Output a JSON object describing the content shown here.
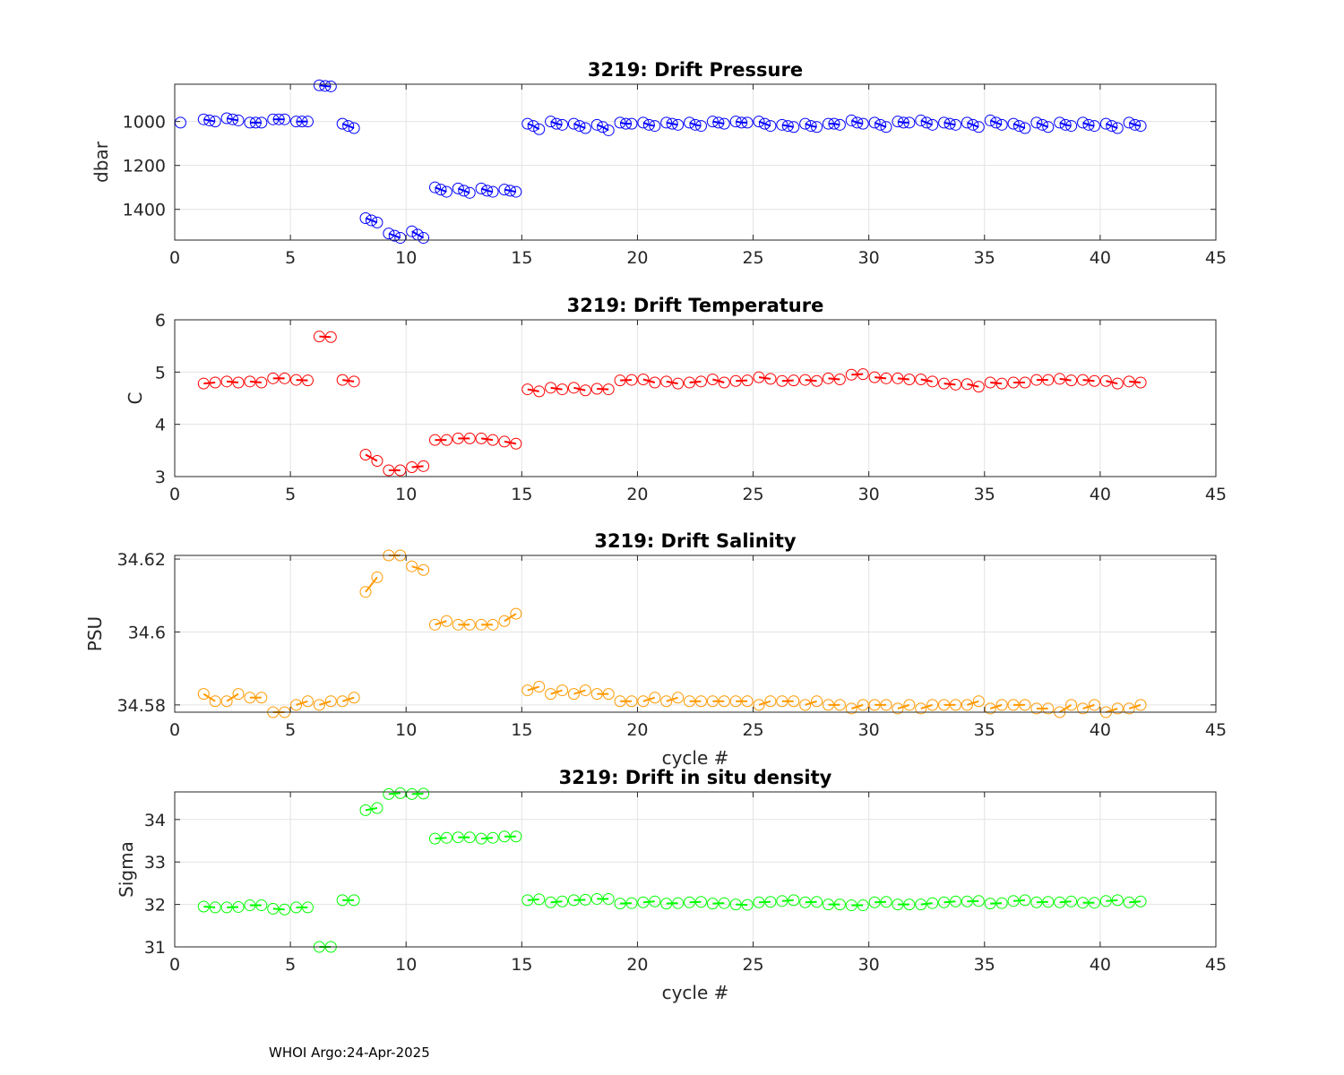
{
  "footer": "WHOI Argo:24-Apr-2025",
  "chart_data": [
    {
      "type": "scatter",
      "title": "3219: Drift Pressure",
      "xlabel": "",
      "ylabel": "dbar",
      "xlim": [
        0,
        45
      ],
      "ylim": [
        830,
        1540
      ],
      "y_reversed": true,
      "xticks": [
        0,
        5,
        10,
        15,
        20,
        25,
        30,
        35,
        40,
        45
      ],
      "yticks": [
        1000,
        1200,
        1400
      ],
      "grid": true,
      "color": "#0000ff",
      "marker": "open circle with connecting line per cycle",
      "series": [
        {
          "x": [
            0.25,
            1.25,
            1.5,
            1.75,
            2.25,
            2.5,
            2.75,
            3.25,
            3.5,
            3.75,
            4.25,
            4.5,
            4.75,
            5.25,
            5.5,
            5.75,
            6.25,
            6.5,
            6.75,
            7.25,
            7.5,
            7.75,
            8.25,
            8.5,
            8.75,
            9.25,
            9.5,
            9.75,
            10.25,
            10.5,
            10.75,
            11.25,
            11.5,
            11.75,
            12.25,
            12.5,
            12.75,
            13.25,
            13.5,
            13.75,
            14.25,
            14.5,
            14.75,
            15.25,
            15.5,
            15.75,
            16.25,
            16.5,
            16.75,
            17.25,
            17.5,
            17.75,
            18.25,
            18.5,
            18.75,
            19.25,
            19.5,
            19.75,
            20.25,
            20.5,
            20.75,
            21.25,
            21.5,
            21.75,
            22.25,
            22.5,
            22.75,
            23.25,
            23.5,
            23.75,
            24.25,
            24.5,
            24.75,
            25.25,
            25.5,
            25.75,
            26.25,
            26.5,
            26.75,
            27.25,
            27.5,
            27.75,
            28.25,
            28.5,
            28.75,
            29.25,
            29.5,
            29.75,
            30.25,
            30.5,
            30.75,
            31.25,
            31.5,
            31.75,
            32.25,
            32.5,
            32.75,
            33.25,
            33.5,
            33.75,
            34.25,
            34.5,
            34.75,
            35.25,
            35.5,
            35.75,
            36.25,
            36.5,
            36.75,
            37.25,
            37.5,
            37.75,
            38.25,
            38.5,
            38.75,
            39.25,
            39.5,
            39.75,
            40.25,
            40.5,
            40.75,
            41.25,
            41.5,
            41.75
          ],
          "y": [
            1005,
            990,
            995,
            1000,
            985,
            990,
            995,
            1005,
            1005,
            1005,
            990,
            990,
            990,
            1000,
            1000,
            1000,
            835,
            838,
            840,
            1010,
            1020,
            1030,
            1440,
            1450,
            1460,
            1510,
            1520,
            1530,
            1500,
            1515,
            1530,
            1300,
            1310,
            1320,
            1305,
            1315,
            1325,
            1305,
            1315,
            1320,
            1310,
            1315,
            1320,
            1010,
            1020,
            1035,
            1000,
            1010,
            1015,
            1010,
            1020,
            1030,
            1015,
            1025,
            1040,
            1005,
            1010,
            1010,
            1005,
            1015,
            1020,
            1005,
            1010,
            1015,
            1005,
            1015,
            1020,
            1000,
            1005,
            1010,
            1000,
            1005,
            1005,
            1000,
            1010,
            1020,
            1015,
            1020,
            1025,
            1010,
            1020,
            1025,
            1010,
            1010,
            1015,
            995,
            1005,
            1010,
            1005,
            1015,
            1025,
            1000,
            1005,
            1005,
            995,
            1005,
            1015,
            1005,
            1010,
            1015,
            1005,
            1015,
            1025,
            995,
            1005,
            1015,
            1010,
            1020,
            1030,
            1005,
            1015,
            1025,
            1005,
            1015,
            1020,
            1005,
            1015,
            1020,
            1010,
            1020,
            1030,
            1005,
            1015,
            1020
          ]
        }
      ]
    },
    {
      "type": "scatter",
      "title": "3219: Drift Temperature",
      "xlabel": "",
      "ylabel": "C",
      "xlim": [
        0,
        45
      ],
      "ylim": [
        3,
        6
      ],
      "xticks": [
        0,
        5,
        10,
        15,
        20,
        25,
        30,
        35,
        40,
        45
      ],
      "yticks": [
        3,
        4,
        5,
        6
      ],
      "grid": true,
      "color": "#ff0000",
      "marker": "open circle with connecting line per cycle",
      "series": [
        {
          "x": [
            1.25,
            1.75,
            2.25,
            2.75,
            3.25,
            3.75,
            4.25,
            4.75,
            5.25,
            5.75,
            6.25,
            6.75,
            7.25,
            7.75,
            8.25,
            8.75,
            9.25,
            9.75,
            10.25,
            10.75,
            11.25,
            11.75,
            12.25,
            12.75,
            13.25,
            13.75,
            14.25,
            14.75,
            15.25,
            15.75,
            16.25,
            16.75,
            17.25,
            17.75,
            18.25,
            18.75,
            19.25,
            19.75,
            20.25,
            20.75,
            21.25,
            21.75,
            22.25,
            22.75,
            23.25,
            23.75,
            24.25,
            24.75,
            25.25,
            25.75,
            26.25,
            26.75,
            27.25,
            27.75,
            28.25,
            28.75,
            29.25,
            29.75,
            30.25,
            30.75,
            31.25,
            31.75,
            32.25,
            32.75,
            33.25,
            33.75,
            34.25,
            34.75,
            35.25,
            35.75,
            36.25,
            36.75,
            37.25,
            37.75,
            38.25,
            38.75,
            39.25,
            39.75,
            40.25,
            40.75,
            41.25,
            41.75
          ],
          "y": [
            4.78,
            4.8,
            4.82,
            4.8,
            4.82,
            4.8,
            4.88,
            4.88,
            4.85,
            4.84,
            5.68,
            5.67,
            4.85,
            4.82,
            3.42,
            3.3,
            3.12,
            3.12,
            3.18,
            3.2,
            3.7,
            3.7,
            3.73,
            3.73,
            3.73,
            3.7,
            3.67,
            3.63,
            4.67,
            4.63,
            4.7,
            4.67,
            4.7,
            4.65,
            4.68,
            4.67,
            4.84,
            4.85,
            4.86,
            4.8,
            4.82,
            4.78,
            4.8,
            4.82,
            4.86,
            4.8,
            4.83,
            4.84,
            4.9,
            4.87,
            4.83,
            4.84,
            4.85,
            4.83,
            4.88,
            4.86,
            4.95,
            4.96,
            4.9,
            4.88,
            4.88,
            4.86,
            4.86,
            4.82,
            4.78,
            4.76,
            4.77,
            4.72,
            4.8,
            4.78,
            4.8,
            4.8,
            4.85,
            4.85,
            4.87,
            4.84,
            4.85,
            4.83,
            4.83,
            4.78,
            4.82,
            4.8
          ]
        }
      ]
    },
    {
      "type": "scatter",
      "title": "3219: Drift Salinity",
      "xlabel": "cycle #",
      "ylabel": "PSU",
      "xlim": [
        0,
        45
      ],
      "ylim": [
        34.578,
        34.621
      ],
      "xticks": [
        0,
        5,
        10,
        15,
        20,
        25,
        30,
        35,
        40,
        45
      ],
      "yticks": [
        34.58,
        34.6,
        34.62
      ],
      "grid": true,
      "color": "#ff9900",
      "marker": "open circle with connecting line per cycle",
      "series": [
        {
          "x": [
            1.25,
            1.75,
            2.25,
            2.75,
            3.25,
            3.75,
            4.25,
            4.75,
            5.25,
            5.75,
            6.25,
            6.75,
            7.25,
            7.75,
            8.25,
            8.75,
            9.25,
            9.75,
            10.25,
            10.75,
            11.25,
            11.75,
            12.25,
            12.75,
            13.25,
            13.75,
            14.25,
            14.75,
            15.25,
            15.75,
            16.25,
            16.75,
            17.25,
            17.75,
            18.25,
            18.75,
            19.25,
            19.75,
            20.25,
            20.75,
            21.25,
            21.75,
            22.25,
            22.75,
            23.25,
            23.75,
            24.25,
            24.75,
            25.25,
            25.75,
            26.25,
            26.75,
            27.25,
            27.75,
            28.25,
            28.75,
            29.25,
            29.75,
            30.25,
            30.75,
            31.25,
            31.75,
            32.25,
            32.75,
            33.25,
            33.75,
            34.25,
            34.75,
            35.25,
            35.75,
            36.25,
            36.75,
            37.25,
            37.75,
            38.25,
            38.75,
            39.25,
            39.75,
            40.25,
            40.75,
            41.25,
            41.75
          ],
          "y": [
            34.583,
            34.581,
            34.581,
            34.583,
            34.582,
            34.582,
            34.578,
            34.578,
            34.58,
            34.581,
            34.58,
            34.581,
            34.581,
            34.582,
            34.611,
            34.615,
            34.621,
            34.621,
            34.618,
            34.617,
            34.602,
            34.603,
            34.602,
            34.602,
            34.602,
            34.602,
            34.603,
            34.605,
            34.584,
            34.585,
            34.583,
            34.584,
            34.583,
            34.584,
            34.583,
            34.583,
            34.581,
            34.581,
            34.581,
            34.582,
            34.581,
            34.582,
            34.581,
            34.581,
            34.581,
            34.581,
            34.581,
            34.581,
            34.58,
            34.581,
            34.581,
            34.581,
            34.58,
            34.581,
            34.58,
            34.58,
            34.579,
            34.58,
            34.58,
            34.58,
            34.579,
            34.58,
            34.579,
            34.58,
            34.58,
            34.58,
            34.58,
            34.581,
            34.579,
            34.58,
            34.58,
            34.58,
            34.579,
            34.579,
            34.578,
            34.58,
            34.579,
            34.58,
            34.578,
            34.579,
            34.579,
            34.58
          ]
        }
      ]
    },
    {
      "type": "scatter",
      "title": "3219: Drift in situ density",
      "xlabel": "cycle #",
      "ylabel": "Sigma",
      "xlim": [
        0,
        45
      ],
      "ylim": [
        31,
        34.65
      ],
      "xticks": [
        0,
        5,
        10,
        15,
        20,
        25,
        30,
        35,
        40,
        45
      ],
      "yticks": [
        31,
        32,
        33,
        34
      ],
      "grid": true,
      "color": "#00ff00",
      "marker": "open circle with connecting line per cycle",
      "series": [
        {
          "x": [
            1.25,
            1.75,
            2.25,
            2.75,
            3.25,
            3.75,
            4.25,
            4.75,
            5.25,
            5.75,
            6.25,
            6.75,
            7.25,
            7.75,
            8.25,
            8.75,
            9.25,
            9.75,
            10.25,
            10.75,
            11.25,
            11.75,
            12.25,
            12.75,
            13.25,
            13.75,
            14.25,
            14.75,
            15.25,
            15.75,
            16.25,
            16.75,
            17.25,
            17.75,
            18.25,
            18.75,
            19.25,
            19.75,
            20.25,
            20.75,
            21.25,
            21.75,
            22.25,
            22.75,
            23.25,
            23.75,
            24.25,
            24.75,
            25.25,
            25.75,
            26.25,
            26.75,
            27.25,
            27.75,
            28.25,
            28.75,
            29.25,
            29.75,
            30.25,
            30.75,
            31.25,
            31.75,
            32.25,
            32.75,
            33.25,
            33.75,
            34.25,
            34.75,
            35.25,
            35.75,
            36.25,
            36.75,
            37.25,
            37.75,
            38.25,
            38.75,
            39.25,
            39.75,
            40.25,
            40.75,
            41.25,
            41.75
          ],
          "y": [
            31.95,
            31.93,
            31.93,
            31.94,
            31.98,
            31.98,
            31.9,
            31.88,
            31.93,
            31.93,
            31.0,
            31.0,
            32.1,
            32.1,
            34.22,
            34.27,
            34.6,
            34.62,
            34.6,
            34.61,
            33.55,
            33.57,
            33.58,
            33.58,
            33.55,
            33.57,
            33.6,
            33.6,
            32.1,
            32.12,
            32.05,
            32.07,
            32.1,
            32.11,
            32.13,
            32.13,
            32.02,
            32.03,
            32.05,
            32.07,
            32.02,
            32.03,
            32.05,
            32.06,
            32.02,
            32.03,
            32.0,
            31.99,
            32.05,
            32.06,
            32.08,
            32.1,
            32.05,
            32.06,
            32.0,
            32.0,
            31.98,
            31.98,
            32.05,
            32.06,
            32.0,
            32.0,
            32.0,
            32.03,
            32.05,
            32.07,
            32.07,
            32.08,
            32.02,
            32.03,
            32.08,
            32.1,
            32.05,
            32.06,
            32.05,
            32.07,
            32.04,
            32.04,
            32.08,
            32.1,
            32.05,
            32.07
          ]
        }
      ]
    }
  ]
}
